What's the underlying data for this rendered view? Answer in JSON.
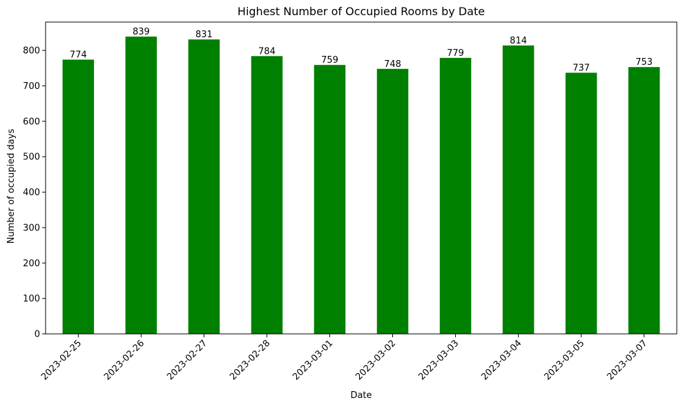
{
  "chart_data": {
    "type": "bar",
    "title": "Highest Number of Occupied Rooms by Date",
    "xlabel": "Date",
    "ylabel": "Number of occupied days",
    "categories": [
      "2023-02-25",
      "2023-02-26",
      "2023-02-27",
      "2023-02-28",
      "2023-03-01",
      "2023-03-02",
      "2023-03-03",
      "2023-03-04",
      "2023-03-05",
      "2023-03-07"
    ],
    "values": [
      774,
      839,
      831,
      784,
      759,
      748,
      779,
      814,
      737,
      753
    ],
    "ylim": [
      0,
      880
    ],
    "yticks": [
      0,
      100,
      200,
      300,
      400,
      500,
      600,
      700,
      800
    ],
    "bar_color": "#008000",
    "grid": false,
    "legend": "none",
    "xtick_rotation_deg": 45
  }
}
